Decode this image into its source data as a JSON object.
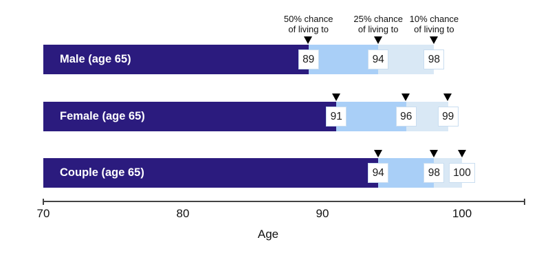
{
  "chart_data": {
    "type": "bar",
    "orientation": "horizontal",
    "title": "",
    "xlabel": "Age",
    "x_axis": {
      "min": 70,
      "max": 105,
      "ticks": [
        70,
        80,
        90,
        100
      ],
      "grid": false
    },
    "legend_headers": [
      {
        "line1": "50% chance",
        "line2": "of living to"
      },
      {
        "line1": "25% chance",
        "line2": "of living to"
      },
      {
        "line1": "10% chance",
        "line2": "of living to"
      }
    ],
    "rows": [
      {
        "label": "Male (age 65)",
        "chance_50": 89,
        "chance_25": 94,
        "chance_10": 98
      },
      {
        "label": "Female (age 65)",
        "chance_50": 91,
        "chance_25": 96,
        "chance_10": 99
      },
      {
        "label": "Couple (age 65)",
        "chance_50": 94,
        "chance_25": 98,
        "chance_10": 100
      }
    ]
  },
  "colors": {
    "bar_50": "#2B1B7E",
    "bar_25": "#A9CFF7",
    "bar_10": "#D9E8F5",
    "marker": "#000000",
    "value_box_bg": "#FFFFFF",
    "value_box_border": "#C9DDF0",
    "bar_label_text": "#FFFFFF",
    "axis_line": "#434343",
    "text": "#111111"
  }
}
